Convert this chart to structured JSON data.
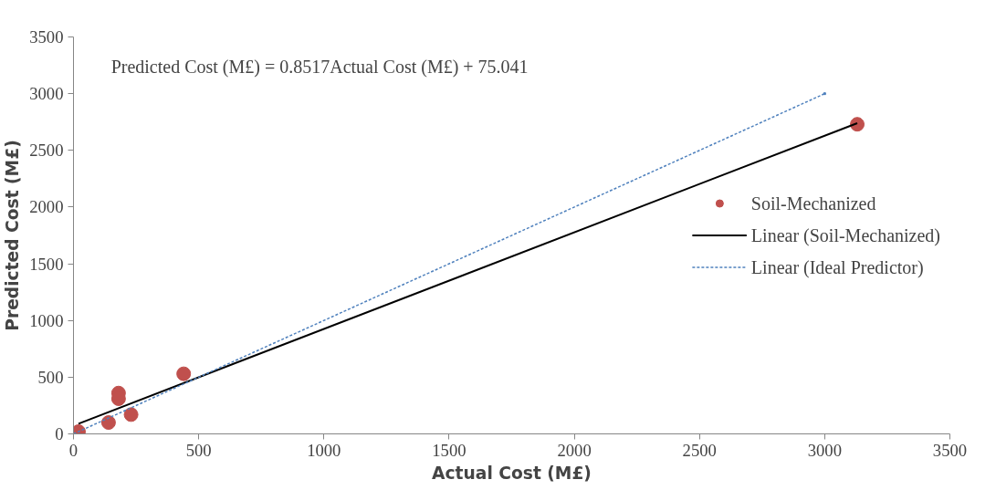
{
  "chart_data": {
    "type": "scatter",
    "xlabel": "Actual Cost (M£)",
    "ylabel": "Predicted Cost (M£)",
    "xlim": [
      0,
      3500
    ],
    "ylim": [
      0,
      3500
    ],
    "xticks": [
      0,
      500,
      1000,
      1500,
      2000,
      2500,
      3000,
      3500
    ],
    "yticks": [
      0,
      500,
      1000,
      1500,
      2000,
      2500,
      3000,
      3500
    ],
    "grid": false,
    "legend": "right",
    "annotations": [
      "Predicted Cost (M£) = 0.8517Actual Cost (M£) + 75.041"
    ],
    "series": [
      {
        "name": "Soil-Mechanized",
        "marker": "circle",
        "color": "#c0504d",
        "x": [
          20,
          140,
          180,
          180,
          230,
          440,
          3130
        ],
        "values": [
          20,
          100,
          360,
          310,
          170,
          530,
          2730
        ]
      },
      {
        "name": "Linear (Soil-Mechanized)",
        "type": "line",
        "color": "#000000",
        "line_style": "solid",
        "x": [
          20,
          3130
        ],
        "values": [
          90,
          2740
        ]
      },
      {
        "name": "Linear (Ideal Predictor)",
        "type": "line",
        "color": "#4f81bd",
        "line_style": "dashed",
        "x": [
          0,
          3000
        ],
        "values": [
          0,
          3000
        ]
      }
    ]
  }
}
